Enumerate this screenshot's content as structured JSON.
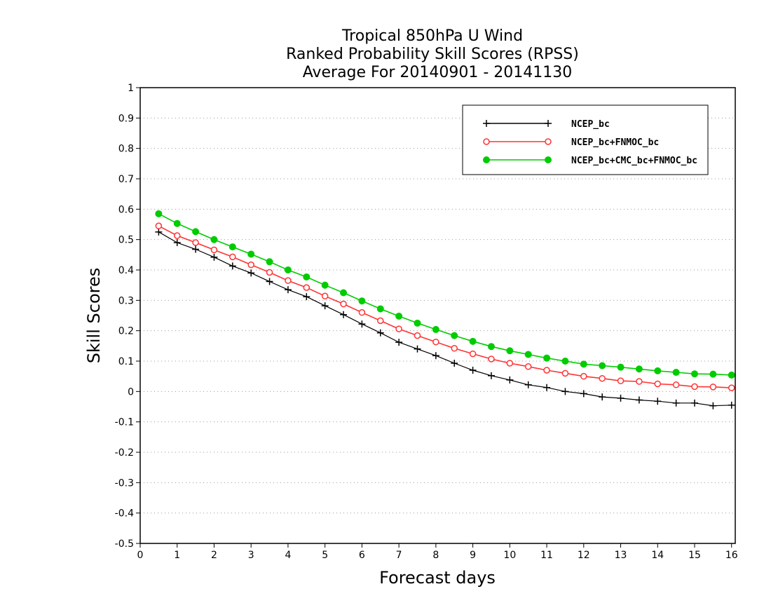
{
  "chart_data": {
    "type": "line",
    "title_lines": [
      "Tropical 850hPa U Wind",
      "Ranked Probability Skill Scores (RPSS)",
      "Average For 20140901 - 20141130"
    ],
    "xlabel": "Forecast days",
    "ylabel": "Skill Scores",
    "xlim": [
      0,
      16.1
    ],
    "ylim": [
      -0.5,
      1
    ],
    "xticks": [
      "0",
      "1",
      "2",
      "3",
      "4",
      "5",
      "6",
      "7",
      "8",
      "9",
      "10",
      "11",
      "12",
      "13",
      "14",
      "15",
      "16"
    ],
    "yticks": [
      "1",
      "0.9",
      "0.8",
      "0.7",
      "0.6",
      "0.5",
      "0.4",
      "0.3",
      "0.2",
      "0.1",
      "0",
      "-0.1",
      "-0.2",
      "-0.3",
      "-0.4",
      "-0.5"
    ],
    "grid": "horizontal-dotted",
    "legend_position": "top-right",
    "x": [
      0.5,
      1,
      1.5,
      2,
      2.5,
      3,
      3.5,
      4,
      4.5,
      5,
      5.5,
      6,
      6.5,
      7,
      7.5,
      8,
      8.5,
      9,
      9.5,
      10,
      10.5,
      11,
      11.5,
      12,
      12.5,
      13,
      13.5,
      14,
      14.5,
      15,
      15.5,
      16
    ],
    "series": [
      {
        "name": "NCEP_bc",
        "color": "#000000",
        "marker": "plus",
        "values": [
          0.525,
          0.49,
          0.468,
          0.442,
          0.413,
          0.39,
          0.362,
          0.335,
          0.312,
          0.282,
          0.253,
          0.222,
          0.193,
          0.162,
          0.14,
          0.118,
          0.093,
          0.07,
          0.052,
          0.038,
          0.022,
          0.013,
          0.0,
          -0.007,
          -0.018,
          -0.022,
          -0.028,
          -0.032,
          -0.038,
          -0.038,
          -0.047,
          -0.045
        ]
      },
      {
        "name": "NCEP_bc+FNMOC_bc",
        "color": "#ff3333",
        "marker": "open-circle",
        "values": [
          0.545,
          0.513,
          0.49,
          0.466,
          0.443,
          0.417,
          0.392,
          0.365,
          0.342,
          0.314,
          0.288,
          0.26,
          0.233,
          0.206,
          0.184,
          0.163,
          0.142,
          0.124,
          0.107,
          0.093,
          0.082,
          0.07,
          0.06,
          0.05,
          0.043,
          0.035,
          0.033,
          0.025,
          0.022,
          0.016,
          0.015,
          0.012
        ]
      },
      {
        "name": "NCEP_bc+CMC_bc+FNMOC_bc",
        "color": "#00cc00",
        "marker": "filled-circle",
        "values": [
          0.585,
          0.553,
          0.526,
          0.5,
          0.476,
          0.452,
          0.427,
          0.4,
          0.377,
          0.35,
          0.325,
          0.298,
          0.272,
          0.248,
          0.225,
          0.204,
          0.184,
          0.165,
          0.148,
          0.134,
          0.122,
          0.11,
          0.1,
          0.09,
          0.085,
          0.08,
          0.074,
          0.068,
          0.063,
          0.058,
          0.057,
          0.054
        ]
      }
    ]
  }
}
